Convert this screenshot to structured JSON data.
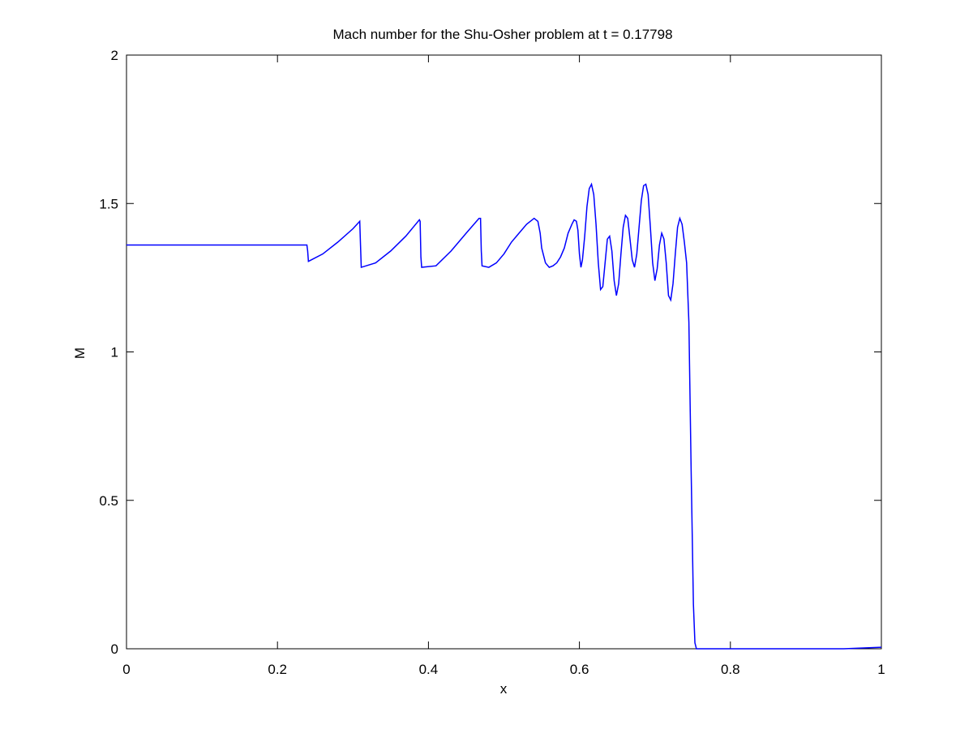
{
  "chart_data": {
    "type": "line",
    "title": "Mach number for the Shu-Osher problem at t = 0.17798",
    "xlabel": "x",
    "ylabel": "M",
    "xlim": [
      0,
      1
    ],
    "ylim": [
      0,
      2
    ],
    "xticks": [
      0,
      0.2,
      0.4,
      0.6,
      0.8,
      1
    ],
    "xtick_labels": [
      "0",
      "0.2",
      "0.4",
      "0.6",
      "0.8",
      "1"
    ],
    "yticks": [
      0,
      0.5,
      1,
      1.5,
      2
    ],
    "ytick_labels": [
      "0",
      "0.5",
      "1",
      "1.5",
      "2"
    ],
    "grid": false,
    "line_color": "#0000ff",
    "series": [
      {
        "x": [
          0,
          0.239,
          0.24,
          0.241,
          0.26,
          0.28,
          0.3,
          0.309,
          0.31,
          0.311,
          0.33,
          0.35,
          0.37,
          0.388,
          0.389,
          0.39,
          0.391,
          0.41,
          0.43,
          0.45,
          0.467,
          0.469,
          0.47,
          0.471,
          0.48,
          0.49,
          0.5,
          0.51,
          0.52,
          0.53,
          0.54,
          0.545,
          0.548,
          0.55,
          0.555,
          0.56,
          0.565,
          0.57,
          0.575,
          0.58,
          0.585,
          0.59,
          0.593,
          0.596,
          0.598,
          0.6,
          0.602,
          0.604,
          0.607,
          0.61,
          0.613,
          0.616,
          0.619,
          0.622,
          0.625,
          0.628,
          0.631,
          0.634,
          0.637,
          0.64,
          0.643,
          0.646,
          0.649,
          0.652,
          0.655,
          0.658,
          0.661,
          0.664,
          0.667,
          0.67,
          0.673,
          0.676,
          0.679,
          0.682,
          0.685,
          0.688,
          0.691,
          0.694,
          0.697,
          0.7,
          0.703,
          0.706,
          0.709,
          0.712,
          0.715,
          0.718,
          0.721,
          0.724,
          0.727,
          0.73,
          0.733,
          0.736,
          0.739,
          0.742,
          0.745,
          0.748,
          0.751,
          0.753,
          0.755,
          0.756,
          0.757,
          0.758,
          0.759,
          0.76,
          0.762,
          0.78,
          0.8,
          0.85,
          0.9,
          0.95,
          1.0
        ],
        "y": [
          1.36,
          1.36,
          1.34,
          1.305,
          1.33,
          1.37,
          1.415,
          1.44,
          1.36,
          1.285,
          1.3,
          1.34,
          1.39,
          1.445,
          1.44,
          1.32,
          1.285,
          1.29,
          1.34,
          1.4,
          1.45,
          1.45,
          1.34,
          1.29,
          1.285,
          1.3,
          1.33,
          1.37,
          1.4,
          1.43,
          1.45,
          1.44,
          1.4,
          1.35,
          1.3,
          1.285,
          1.29,
          1.3,
          1.32,
          1.35,
          1.4,
          1.43,
          1.445,
          1.44,
          1.41,
          1.33,
          1.285,
          1.31,
          1.39,
          1.49,
          1.55,
          1.565,
          1.53,
          1.43,
          1.3,
          1.21,
          1.22,
          1.3,
          1.38,
          1.39,
          1.34,
          1.24,
          1.19,
          1.23,
          1.33,
          1.42,
          1.46,
          1.45,
          1.38,
          1.31,
          1.285,
          1.33,
          1.42,
          1.51,
          1.56,
          1.565,
          1.53,
          1.42,
          1.3,
          1.24,
          1.28,
          1.36,
          1.4,
          1.38,
          1.3,
          1.19,
          1.175,
          1.23,
          1.33,
          1.42,
          1.45,
          1.43,
          1.37,
          1.3,
          1.1,
          0.6,
          0.15,
          0.02,
          0.0,
          0.0,
          0.0,
          0.0,
          0.0,
          0.0,
          0.0,
          0.0,
          0.0,
          0.0,
          0.0,
          0.0,
          0.005
        ]
      }
    ]
  }
}
